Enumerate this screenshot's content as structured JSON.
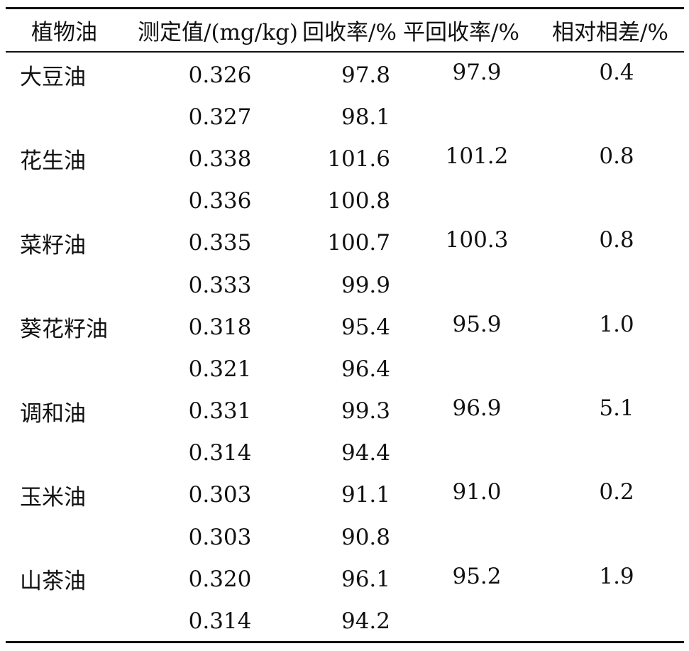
{
  "table": {
    "headers": [
      "植物油",
      "测定值/(mg/kg)",
      "回收率/%",
      "平回收率/%",
      "相对相差/%"
    ],
    "rows": [
      {
        "oil": "大豆油",
        "measured": "0.326",
        "recovery": "97.8",
        "avg_recovery": "97.9",
        "rel_diff": "0.4"
      },
      {
        "oil": "",
        "measured": "0.327",
        "recovery": "98.1",
        "avg_recovery": "",
        "rel_diff": ""
      },
      {
        "oil": "花生油",
        "measured": "0.338",
        "recovery": "101.6",
        "avg_recovery": "101.2",
        "rel_diff": "0.8"
      },
      {
        "oil": "",
        "measured": "0.336",
        "recovery": "100.8",
        "avg_recovery": "",
        "rel_diff": ""
      },
      {
        "oil": "菜籽油",
        "measured": "0.335",
        "recovery": "100.7",
        "avg_recovery": "100.3",
        "rel_diff": "0.8"
      },
      {
        "oil": "",
        "measured": "0.333",
        "recovery": "99.9",
        "avg_recovery": "",
        "rel_diff": ""
      },
      {
        "oil": "葵花籽油",
        "measured": "0.318",
        "recovery": "95.4",
        "avg_recovery": "95.9",
        "rel_diff": "1.0"
      },
      {
        "oil": "",
        "measured": "0.321",
        "recovery": "96.4",
        "avg_recovery": "",
        "rel_diff": ""
      },
      {
        "oil": "调和油",
        "measured": "0.331",
        "recovery": "99.3",
        "avg_recovery": "96.9",
        "rel_diff": "5.1"
      },
      {
        "oil": "",
        "measured": "0.314",
        "recovery": "94.4",
        "avg_recovery": "",
        "rel_diff": ""
      },
      {
        "oil": "玉米油",
        "measured": "0.303",
        "recovery": "91.1",
        "avg_recovery": "91.0",
        "rel_diff": "0.2"
      },
      {
        "oil": "",
        "measured": "0.303",
        "recovery": "90.8",
        "avg_recovery": "",
        "rel_diff": ""
      },
      {
        "oil": "山茶油",
        "measured": "0.320",
        "recovery": "96.1",
        "avg_recovery": "95.2",
        "rel_diff": "1.9"
      },
      {
        "oil": "",
        "measured": "0.314",
        "recovery": "94.2",
        "avg_recovery": "",
        "rel_diff": ""
      }
    ]
  }
}
